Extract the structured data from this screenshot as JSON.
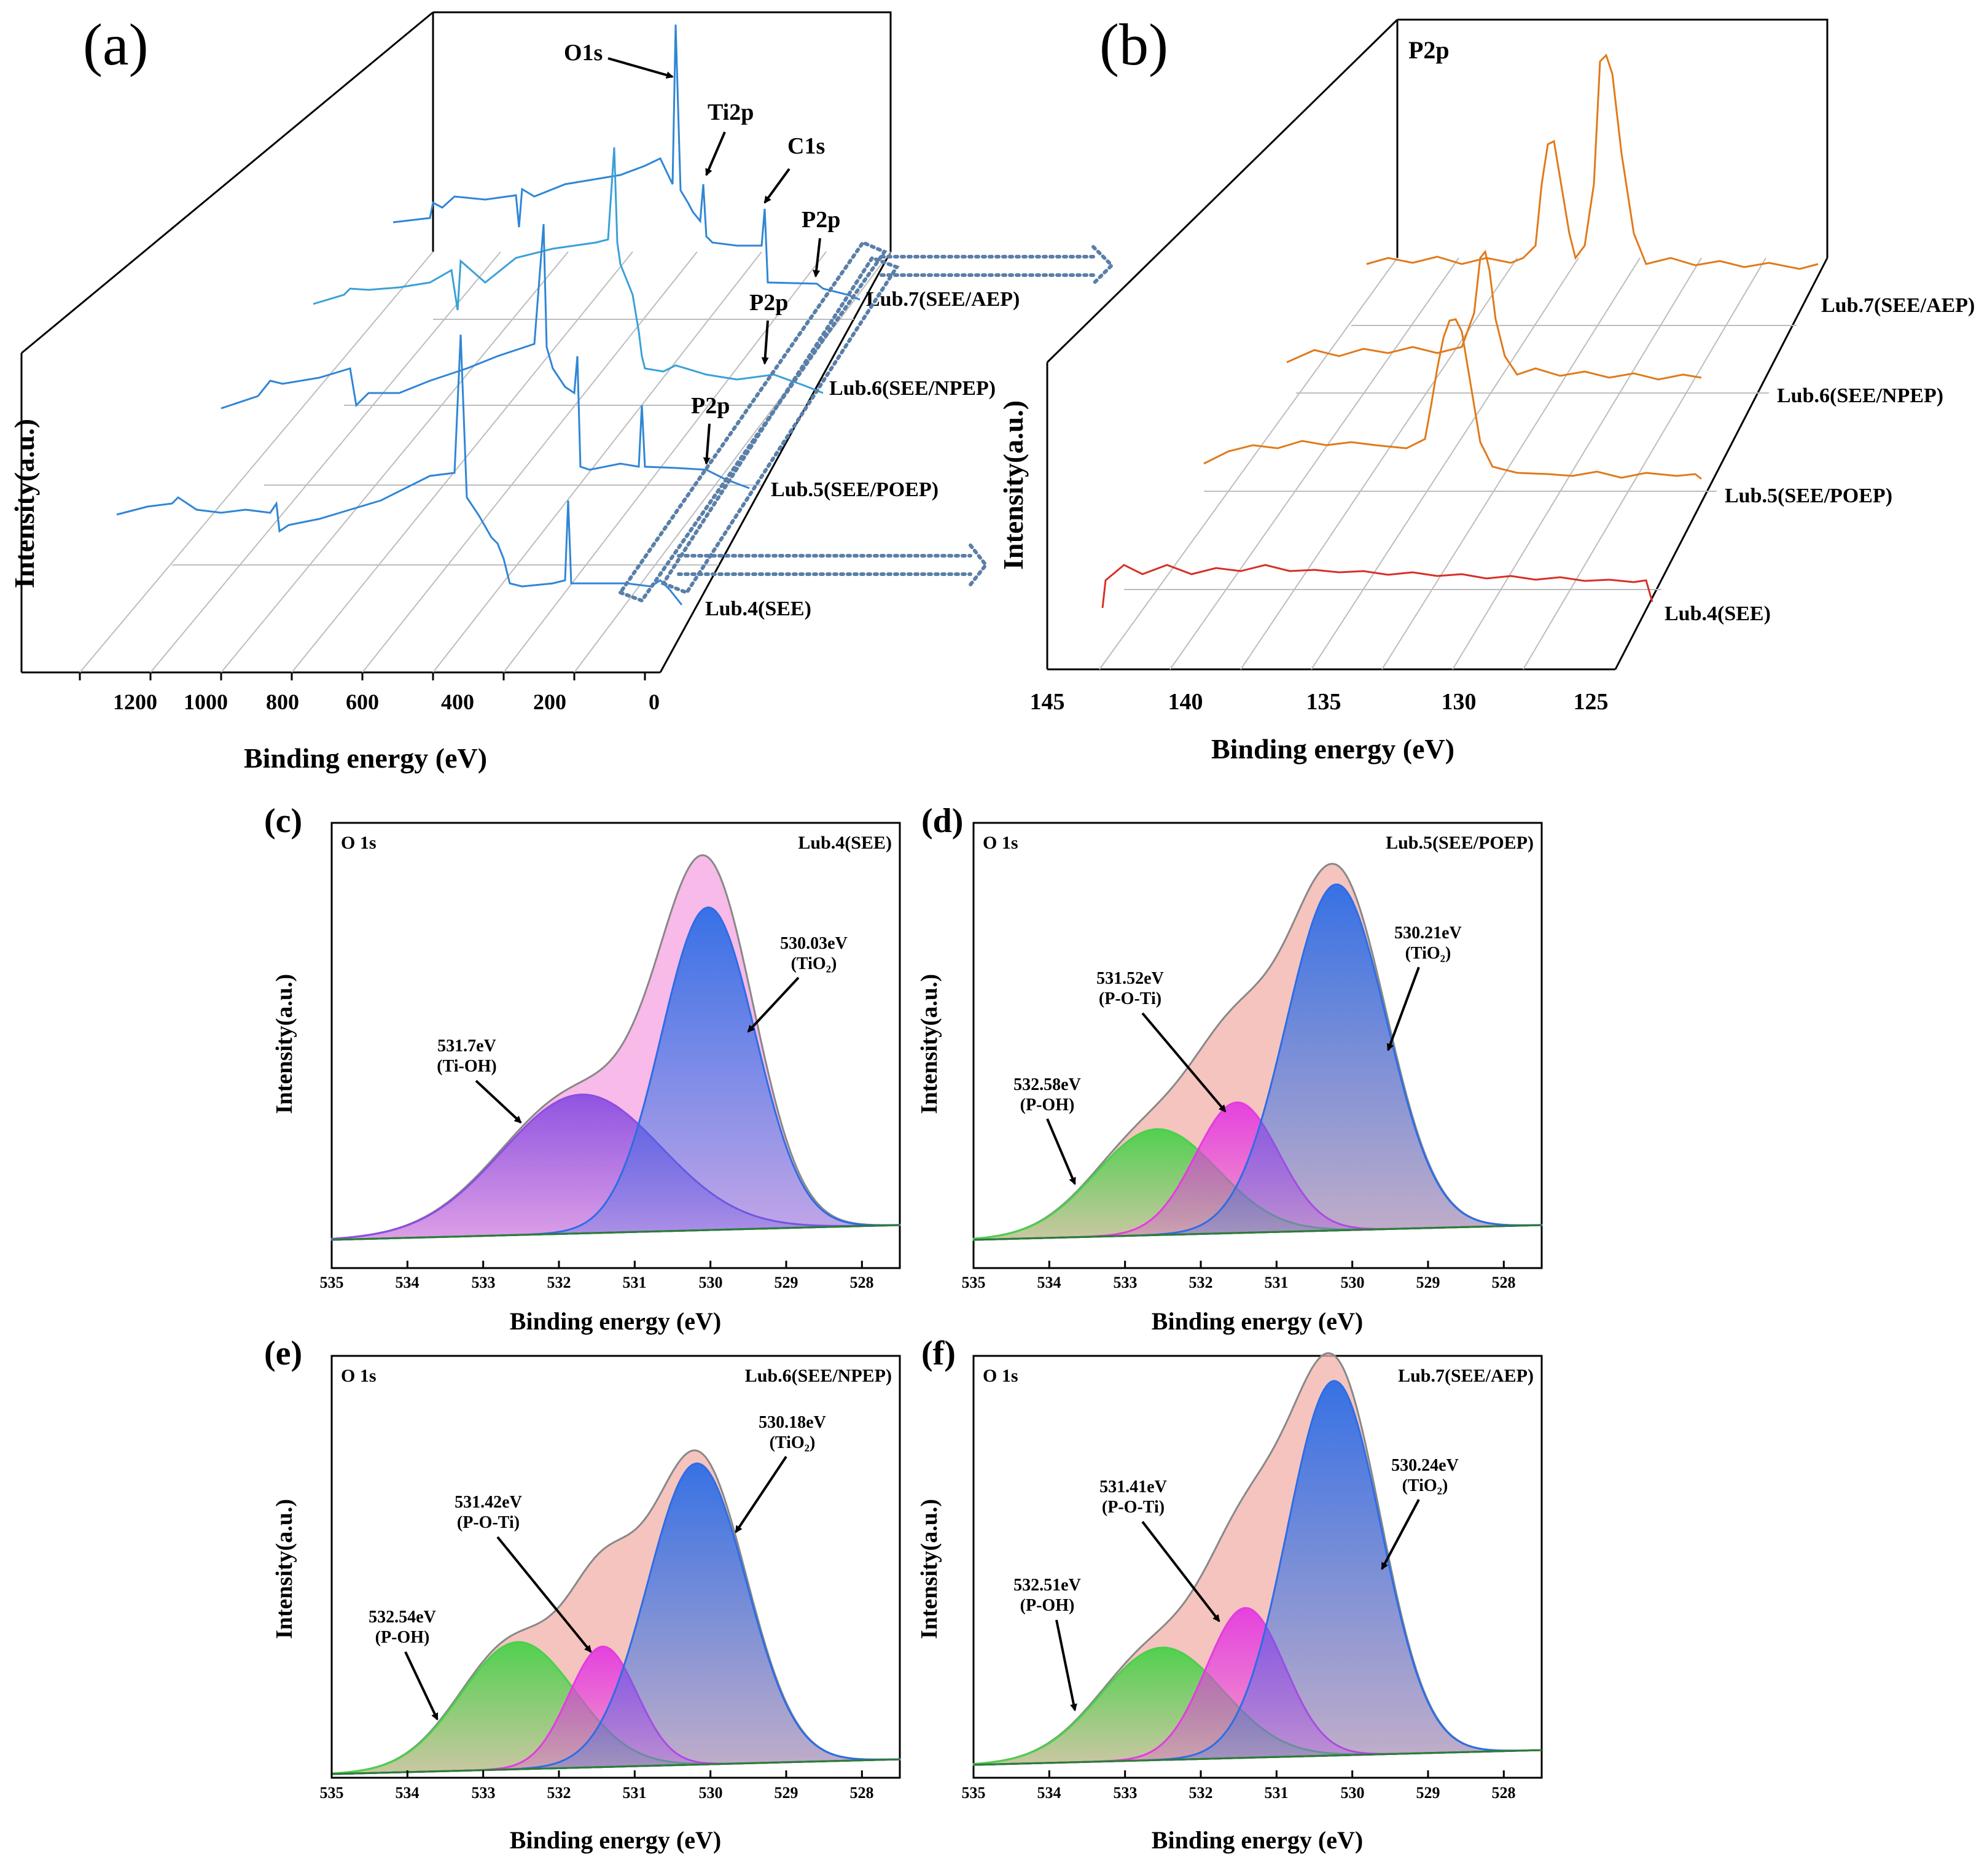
{
  "panel_a": {
    "letter": "(a)",
    "ylabel": "Intensity(a.u.)",
    "xlabel": "Binding energy (eV)",
    "xticks": [
      "1200",
      "1000",
      "800",
      "600",
      "400",
      "200",
      "0"
    ],
    "peaks": {
      "o1s": "O1s",
      "ti2p": "Ti2p",
      "c1s": "C1s",
      "p2p": "P2p"
    },
    "series": [
      "Lub.4(SEE)",
      "Lub.5(SEE/POEP)",
      "Lub.6(SEE/NPEP)",
      "Lub.7(SEE/AEP)"
    ]
  },
  "panel_b": {
    "letter": "(b)",
    "title": "P2p",
    "ylabel": "Intensity(a.u.)",
    "xlabel": "Binding energy (eV)",
    "xticks": [
      "145",
      "140",
      "135",
      "130",
      "125"
    ],
    "series": [
      "Lub.4(SEE)",
      "Lub.5(SEE/POEP)",
      "Lub.6(SEE/NPEP)",
      "Lub.7(SEE/AEP)"
    ]
  },
  "o1s_panels": {
    "xlabel": "Binding energy (eV)",
    "ylabel": "Intensity(a.u.)",
    "core": "O 1s",
    "xticks": [
      "535",
      "534",
      "533",
      "532",
      "531",
      "530",
      "529",
      "528"
    ]
  },
  "chart_data": [
    {
      "id": "c",
      "letter": "(c)",
      "type": "area",
      "sample": "Lub.4(SEE)",
      "xlim": [
        535,
        527.5
      ],
      "components": [
        {
          "center": 531.7,
          "label": "531.7eV",
          "species": "(Ti-OH)",
          "amp": 0.4,
          "sigma": 1.05,
          "color": "#8a4ee0"
        },
        {
          "center": 530.03,
          "label": "530.03eV",
          "species": "(TiO₂)",
          "amp": 0.93,
          "sigma": 0.62,
          "color": "#2d6de6"
        }
      ]
    },
    {
      "id": "d",
      "letter": "(d)",
      "type": "area",
      "sample": "Lub.5(SEE/POEP)",
      "xlim": [
        535,
        527.5
      ],
      "components": [
        {
          "center": 532.58,
          "label": "532.58eV",
          "species": "(P-OH)",
          "amp": 0.3,
          "sigma": 0.8,
          "color": "#49d14a"
        },
        {
          "center": 531.52,
          "label": "531.52eV",
          "species": "(P-O-Ti)",
          "amp": 0.37,
          "sigma": 0.55,
          "color": "#e43be0"
        },
        {
          "center": 530.21,
          "label": "530.21eV",
          "species": "(TiO₂)",
          "amp": 0.98,
          "sigma": 0.66,
          "color": "#2d6de6"
        }
      ]
    },
    {
      "id": "e",
      "letter": "(e)",
      "type": "area",
      "sample": "Lub.6(SEE/NPEP)",
      "xlim": [
        535,
        527.5
      ],
      "components": [
        {
          "center": 532.54,
          "label": "532.54eV",
          "species": "(P-OH)",
          "amp": 0.38,
          "sigma": 0.75,
          "color": "#49d14a"
        },
        {
          "center": 531.42,
          "label": "531.42eV",
          "species": "(P-O-Ti)",
          "amp": 0.36,
          "sigma": 0.45,
          "color": "#e43be0"
        },
        {
          "center": 530.18,
          "label": "530.18eV",
          "species": "(TiO₂)",
          "amp": 0.9,
          "sigma": 0.65,
          "color": "#2d6de6"
        }
      ]
    },
    {
      "id": "f",
      "letter": "(f)",
      "type": "area",
      "sample": "Lub.7(SEE/AEP)",
      "xlim": [
        535,
        527.5
      ],
      "components": [
        {
          "center": 532.51,
          "label": "532.51eV",
          "species": "(P-OH)",
          "amp": 0.3,
          "sigma": 0.8,
          "color": "#49d14a"
        },
        {
          "center": 531.41,
          "label": "531.41eV",
          "species": "(P-O-Ti)",
          "amp": 0.4,
          "sigma": 0.52,
          "color": "#e43be0"
        },
        {
          "center": 530.24,
          "label": "530.24eV",
          "species": "(TiO₂)",
          "amp": 1.0,
          "sigma": 0.62,
          "color": "#2d6de6"
        }
      ]
    }
  ]
}
